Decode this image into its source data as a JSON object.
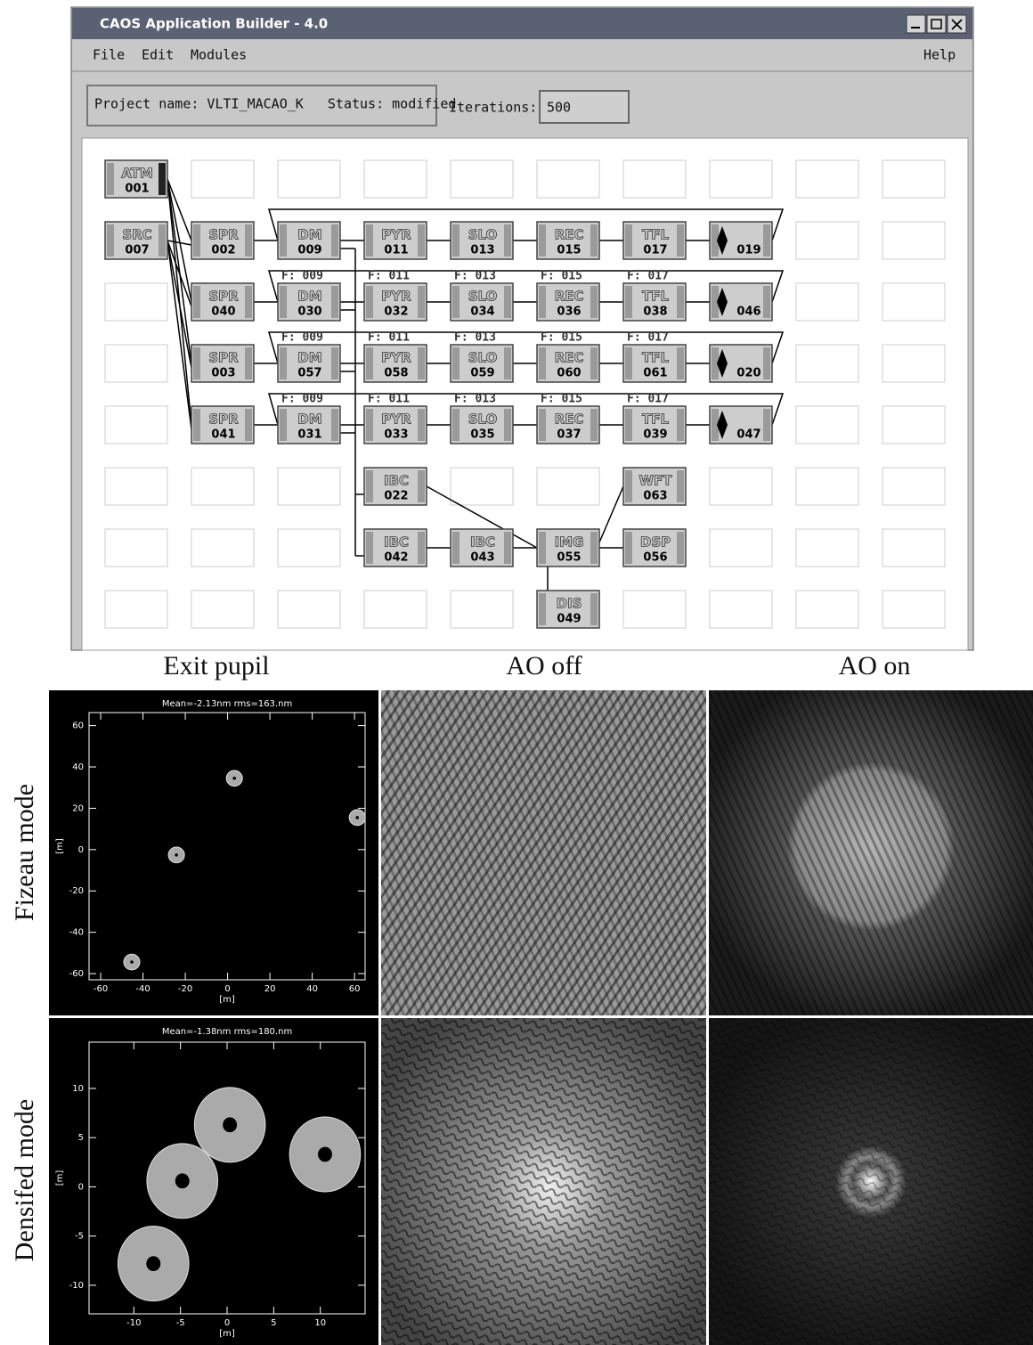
{
  "window": {
    "title": "CAOS Application Builder - 4.0",
    "menu": [
      "File",
      "Edit",
      "Modules"
    ],
    "help": "Help"
  },
  "project": {
    "text": "Project name: VLTI_MACAO_K   Status: modified",
    "iterations_label": "Iterations:",
    "iterations": "500"
  },
  "modules": [
    {
      "label": "ATM",
      "number": "001"
    },
    {
      "label": "SRC",
      "number": "007"
    },
    {
      "label": "SPR",
      "number": "002"
    },
    {
      "label": "DM",
      "number": "009"
    },
    {
      "label": "PYR",
      "number": "011"
    },
    {
      "label": "SLO",
      "number": "013"
    },
    {
      "label": "REC",
      "number": "015"
    },
    {
      "label": "TFL",
      "number": "017"
    },
    {
      "number": "019"
    },
    {
      "label": "SPR",
      "number": "040"
    },
    {
      "label": "DM",
      "number": "030"
    },
    {
      "label": "PYR",
      "number": "032"
    },
    {
      "label": "SLO",
      "number": "034"
    },
    {
      "label": "REC",
      "number": "036"
    },
    {
      "label": "TFL",
      "number": "038"
    },
    {
      "number": "046"
    },
    {
      "label": "SPR",
      "number": "003"
    },
    {
      "label": "DM",
      "number": "057"
    },
    {
      "label": "PYR",
      "number": "058"
    },
    {
      "label": "SLO",
      "number": "059"
    },
    {
      "label": "REC",
      "number": "060"
    },
    {
      "label": "TFL",
      "number": "061"
    },
    {
      "number": "020"
    },
    {
      "label": "SPR",
      "number": "041"
    },
    {
      "label": "DM",
      "number": "031"
    },
    {
      "label": "PYR",
      "number": "033"
    },
    {
      "label": "SLO",
      "number": "035"
    },
    {
      "label": "REC",
      "number": "037"
    },
    {
      "label": "TFL",
      "number": "039"
    },
    {
      "number": "047"
    },
    {
      "label": "IBC",
      "number": "022"
    },
    {
      "label": "WFT",
      "number": "063"
    },
    {
      "label": "IBC",
      "number": "042"
    },
    {
      "label": "IBC",
      "number": "043"
    },
    {
      "label": "IMG",
      "number": "055"
    },
    {
      "label": "DSP",
      "number": "056"
    },
    {
      "label": "DIS",
      "number": "049"
    }
  ],
  "feedback_labels": [
    [
      "F: 009",
      "F: 011",
      "F: 013",
      "F: 015",
      "F: 017"
    ],
    [
      "F: 009",
      "F: 011",
      "F: 013",
      "F: 015",
      "F: 017"
    ],
    [
      "F: 009",
      "F: 011",
      "F: 013",
      "F: 015",
      "F: 017"
    ]
  ],
  "figure": {
    "columns": [
      "Exit pupil",
      "AO off",
      "AO on"
    ],
    "rows": [
      "Fizeau mode",
      "Densifed mode"
    ],
    "plots": [
      {
        "title": "Mean=-2.13nm rms=163.nm",
        "xlabel": "[m]",
        "ylabel": "[m]",
        "xlim": [
          -65.5,
          65
        ],
        "ylim": [
          -63,
          66.3
        ],
        "xticks": [
          -60,
          -40,
          -20,
          0,
          20,
          40,
          60
        ],
        "yticks": [
          -60,
          -40,
          -20,
          0,
          20,
          40,
          60
        ],
        "aperture_radius": 3.8,
        "apertures": [
          {
            "x": -45.3,
            "y": -54.4
          },
          {
            "x": -24.2,
            "y": -2.6
          },
          {
            "x": 3.2,
            "y": 34.5
          },
          {
            "x": 61.3,
            "y": 15.5
          }
        ]
      },
      {
        "title": "Mean=-1.38nm rms=180.nm",
        "xlabel": "[m]",
        "ylabel": "[m]",
        "xlim": [
          -14.8,
          14.8
        ],
        "ylim": [
          -12.9,
          14.7
        ],
        "xticks": [
          -10,
          -5,
          0,
          5,
          10
        ],
        "yticks": [
          -10,
          -5,
          0,
          5,
          10
        ],
        "aperture_radius": 3.8,
        "apertures": [
          {
            "x": -7.9,
            "y": -7.8
          },
          {
            "x": -4.8,
            "y": 0.6
          },
          {
            "x": 0.3,
            "y": 6.3
          },
          {
            "x": 10.5,
            "y": 3.3
          }
        ]
      }
    ]
  }
}
